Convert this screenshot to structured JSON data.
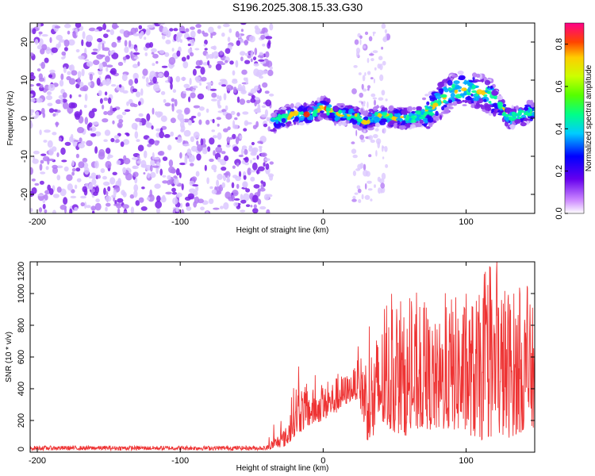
{
  "title": "S196.2025.308.15.33.G30",
  "chart_data": [
    {
      "type": "heatmap",
      "xlabel": "Height of straight line (km)",
      "ylabel": "Frequency (Hz)",
      "xlim": [
        -205,
        148
      ],
      "ylim": [
        -25,
        25
      ],
      "xticks": [
        -200,
        -100,
        0,
        100
      ],
      "yticks": [
        -20,
        -10,
        0,
        10,
        20
      ],
      "noise_region_x": [
        -205,
        -36
      ],
      "ridge_center_x": [
        -35,
        -30,
        -20,
        -10,
        0,
        10,
        20,
        30,
        40,
        50,
        60,
        70,
        80,
        90,
        100,
        110,
        120,
        130,
        140,
        148
      ],
      "ridge_center_freq": [
        -1,
        0,
        1,
        1,
        3,
        1,
        1,
        -1,
        1,
        0,
        0,
        1,
        4,
        7,
        8,
        7,
        5,
        0,
        1,
        2
      ],
      "colorbar": {
        "label": "Normalized spectral amplitude",
        "ticks": [
          0.0,
          0.2,
          0.4,
          0.6,
          0.8
        ],
        "range": [
          0.0,
          0.9
        ]
      }
    },
    {
      "type": "line",
      "xlabel": "Height of straight line (km)",
      "ylabel": "SNR (10 * v/v)",
      "xlim": [
        -205,
        148
      ],
      "ylim": [
        0,
        1200
      ],
      "xticks": [
        -200,
        -100,
        0,
        100
      ],
      "yticks": [
        0,
        200,
        400,
        600,
        800,
        1000,
        1200
      ],
      "color": "#ee3333",
      "envelope_x": [
        -205,
        -40,
        -25,
        -20,
        -10,
        0,
        10,
        20,
        25,
        30,
        35,
        40,
        50,
        60,
        70,
        80,
        90,
        100,
        110,
        120,
        130,
        140,
        148
      ],
      "baseline": [
        12,
        12,
        40,
        100,
        160,
        200,
        250,
        330,
        330,
        80,
        50,
        150,
        120,
        100,
        150,
        130,
        140,
        120,
        70,
        100,
        90,
        130,
        150
      ],
      "peak": [
        40,
        40,
        170,
        450,
        400,
        400,
        480,
        500,
        600,
        650,
        700,
        800,
        900,
        850,
        920,
        800,
        1000,
        950,
        1000,
        1100,
        1050,
        1000,
        900
      ]
    }
  ]
}
